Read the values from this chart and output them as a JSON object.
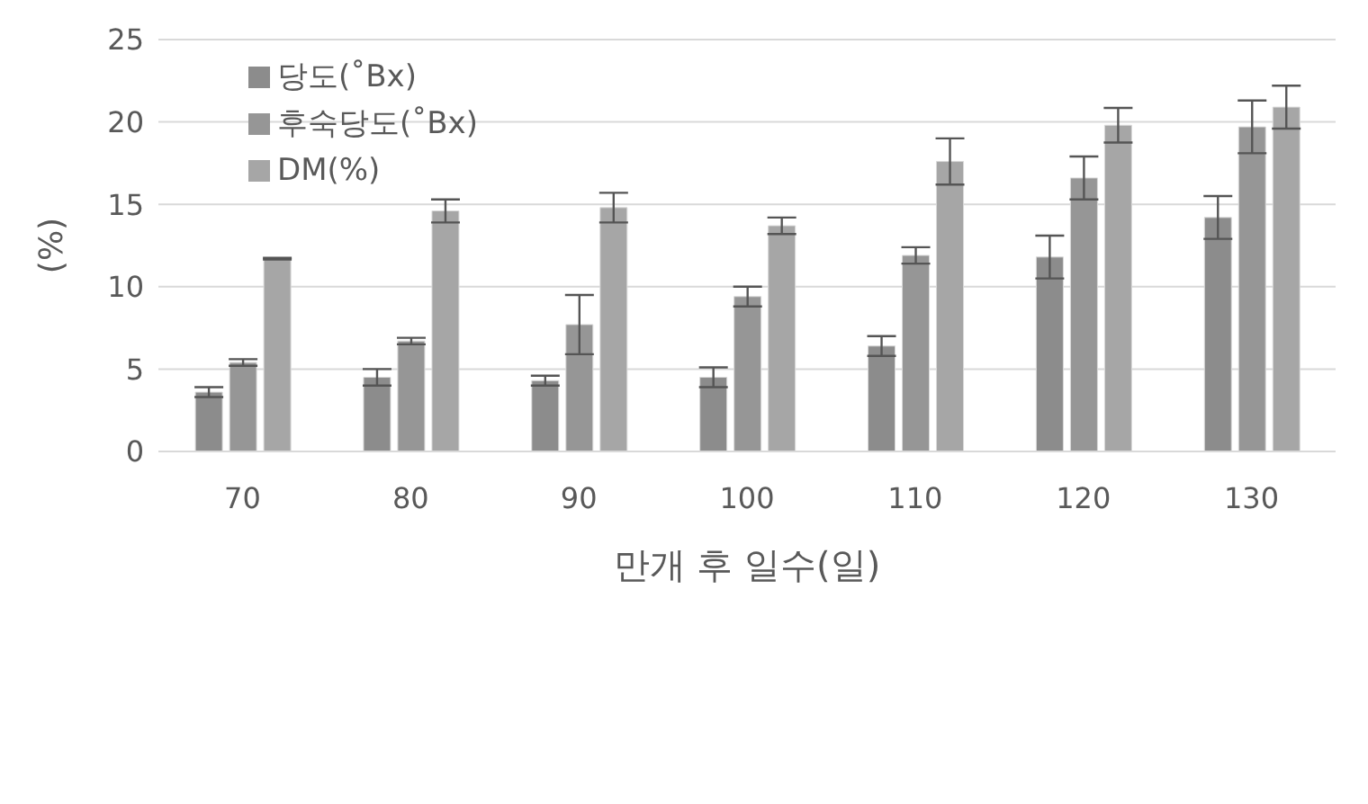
{
  "chart_data": {
    "type": "bar",
    "xlabel": "만개 후 일수(일)",
    "ylabel": "(%)",
    "categories": [
      "70",
      "80",
      "90",
      "100",
      "110",
      "120",
      "130"
    ],
    "series": [
      {
        "name": "당도(˚Bx)",
        "color": "#8c8c8c",
        "values": [
          3.6,
          4.5,
          4.3,
          4.5,
          6.4,
          11.8,
          14.2
        ],
        "errors": [
          0.3,
          0.5,
          0.3,
          0.6,
          0.6,
          1.3,
          1.3
        ]
      },
      {
        "name": "후숙당도(˚Bx)",
        "color": "#969696",
        "values": [
          5.4,
          6.7,
          7.7,
          9.4,
          11.9,
          16.6,
          19.7
        ],
        "errors": [
          0.2,
          0.2,
          1.8,
          0.6,
          0.5,
          1.3,
          1.6
        ]
      },
      {
        "name": "DM(%)",
        "color": "#a6a6a6",
        "values": [
          11.7,
          14.6,
          14.8,
          13.7,
          17.6,
          19.8,
          20.9
        ],
        "errors": [
          0.05,
          0.7,
          0.9,
          0.5,
          1.4,
          1.05,
          1.3
        ]
      }
    ],
    "ylim": [
      0,
      25
    ],
    "yticks": [
      0,
      5,
      10,
      15,
      20,
      25
    ],
    "grid": "y",
    "legend": "top left"
  }
}
